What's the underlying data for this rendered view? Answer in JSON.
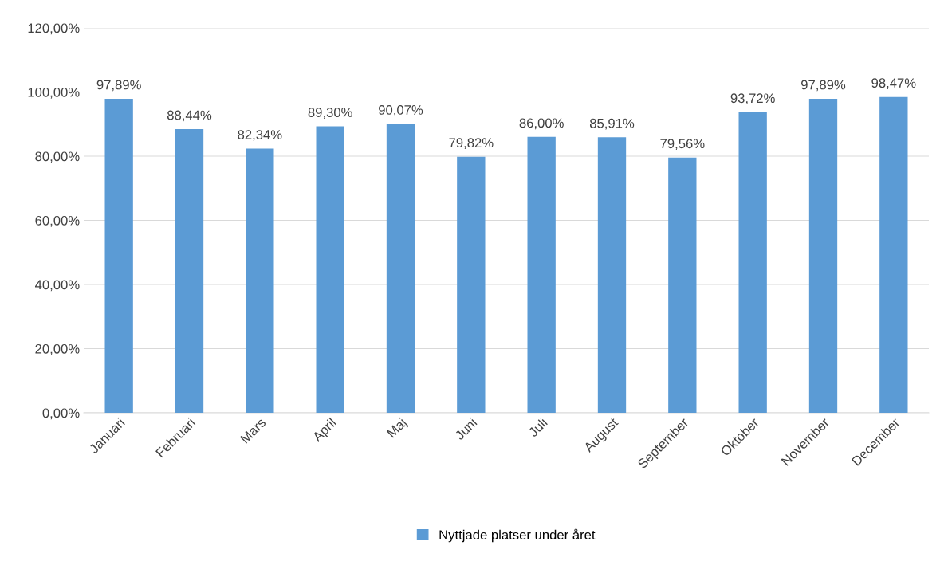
{
  "chart_data": {
    "type": "bar",
    "categories": [
      "Januari",
      "Februari",
      "Mars",
      "April",
      "Maj",
      "Juni",
      "Juli",
      "August",
      "September",
      "Oktober",
      "November",
      "December"
    ],
    "series": [
      {
        "name": "Nyttjade platser under året",
        "color": "#5b9bd5",
        "values": [
          97.89,
          88.44,
          82.34,
          89.3,
          90.07,
          79.82,
          86.0,
          85.91,
          79.56,
          93.72,
          97.89,
          98.47
        ],
        "value_labels": [
          "97,89%",
          "88,44%",
          "82,34%",
          "89,30%",
          "90,07%",
          "79,82%",
          "86,00%",
          "85,91%",
          "79,56%",
          "93,72%",
          "97,89%",
          "98,47%"
        ]
      }
    ],
    "ylim": [
      0,
      120
    ],
    "yticks": [
      {
        "value": 0,
        "label": "0,00%"
      },
      {
        "value": 20,
        "label": "20,00%"
      },
      {
        "value": 40,
        "label": "40,00%"
      },
      {
        "value": 60,
        "label": "60,00%"
      },
      {
        "value": 80,
        "label": "80,00%"
      },
      {
        "value": 100,
        "label": "100,00%"
      },
      {
        "value": 120,
        "label": "120,00%"
      }
    ],
    "grid": "y",
    "legend": "bottom"
  }
}
